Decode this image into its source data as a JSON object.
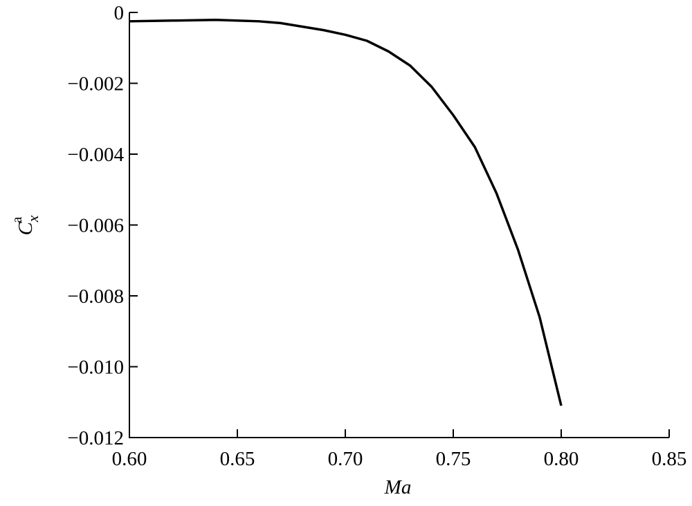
{
  "chart_data": {
    "type": "line",
    "xlabel": "Ma",
    "ylabel": {
      "base": "C",
      "sub": "x",
      "sup": "a"
    },
    "x": [
      0.6,
      0.62,
      0.64,
      0.66,
      0.67,
      0.68,
      0.69,
      0.7,
      0.71,
      0.72,
      0.73,
      0.74,
      0.75,
      0.76,
      0.77,
      0.78,
      0.79,
      0.8
    ],
    "values": [
      -0.00025,
      -0.00023,
      -0.00021,
      -0.00025,
      -0.0003,
      -0.0004,
      -0.0005,
      -0.00063,
      -0.0008,
      -0.0011,
      -0.0015,
      -0.0021,
      -0.0029,
      -0.0038,
      -0.0051,
      -0.0067,
      -0.0086,
      -0.0111
    ],
    "color": "#000000",
    "xlim": [
      0.6,
      0.85
    ],
    "ylim": [
      -0.012,
      0
    ],
    "xticks": [
      {
        "value": 0.6,
        "label": "0.60"
      },
      {
        "value": 0.65,
        "label": "0.65"
      },
      {
        "value": 0.7,
        "label": "0.70"
      },
      {
        "value": 0.75,
        "label": "0.75"
      },
      {
        "value": 0.8,
        "label": "0.80"
      },
      {
        "value": 0.85,
        "label": "0.85"
      }
    ],
    "yticks": [
      0,
      {
        "value": -0.002,
        "label": "−0.002"
      },
      {
        "value": -0.004,
        "label": "−0.004"
      },
      {
        "value": -0.006,
        "label": "−0.006"
      },
      {
        "value": -0.008,
        "label": "−0.008"
      },
      {
        "value": -0.01,
        "label": "−0.010"
      },
      {
        "value": -0.012,
        "label": "−0.012"
      }
    ],
    "grid": false
  }
}
